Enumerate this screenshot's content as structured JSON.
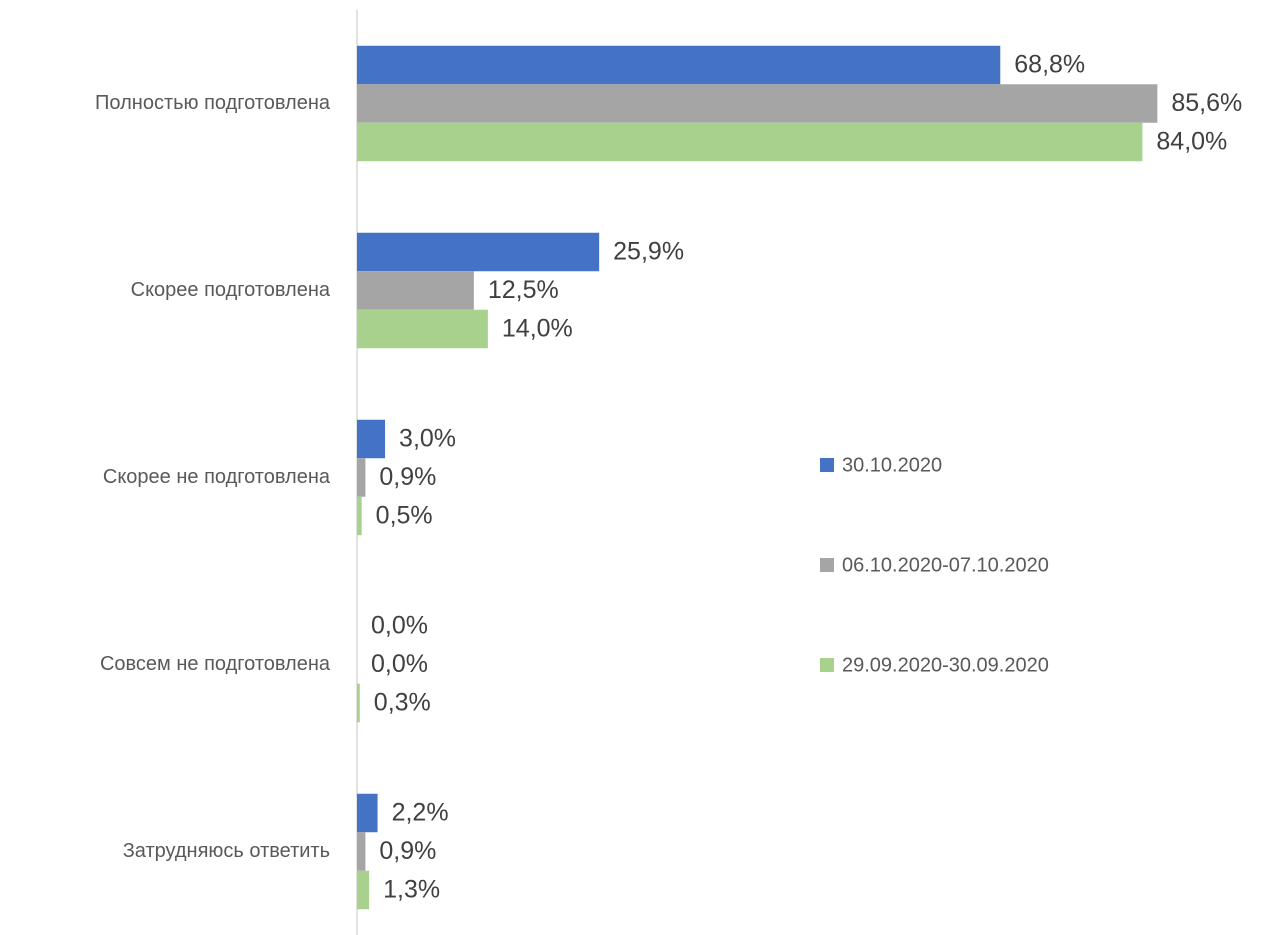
{
  "chart_data": {
    "type": "bar",
    "orientation": "horizontal",
    "categories": [
      "Полностью подготовлена",
      "Скорее подготовлена",
      "Скорее  не подготовлена",
      "Совсем не подготовлена",
      "Затрудняюсь ответить"
    ],
    "series": [
      {
        "name": "30.10.2020",
        "color": "#4472c4",
        "values": [
          68.8,
          25.9,
          3.0,
          0.0,
          2.2
        ],
        "value_labels": [
          "68,8%",
          "25,9%",
          "3,0%",
          "0,0%",
          "2,2%"
        ]
      },
      {
        "name": "06.10.2020-07.10.2020",
        "color": "#a5a5a5",
        "values": [
          85.6,
          12.5,
          0.9,
          0.0,
          0.9
        ],
        "value_labels": [
          "85,6%",
          "12,5%",
          "0,9%",
          "0,0%",
          "0,9%"
        ]
      },
      {
        "name": "29.09.2020-30.09.2020",
        "color": "#a9d18e",
        "values": [
          84.0,
          14.0,
          0.5,
          0.3,
          1.3
        ],
        "value_labels": [
          "84,0%",
          "14,0%",
          "0,5%",
          "0,3%",
          "1,3%"
        ]
      }
    ],
    "xlim": [
      0,
      100
    ],
    "legend": "right"
  }
}
